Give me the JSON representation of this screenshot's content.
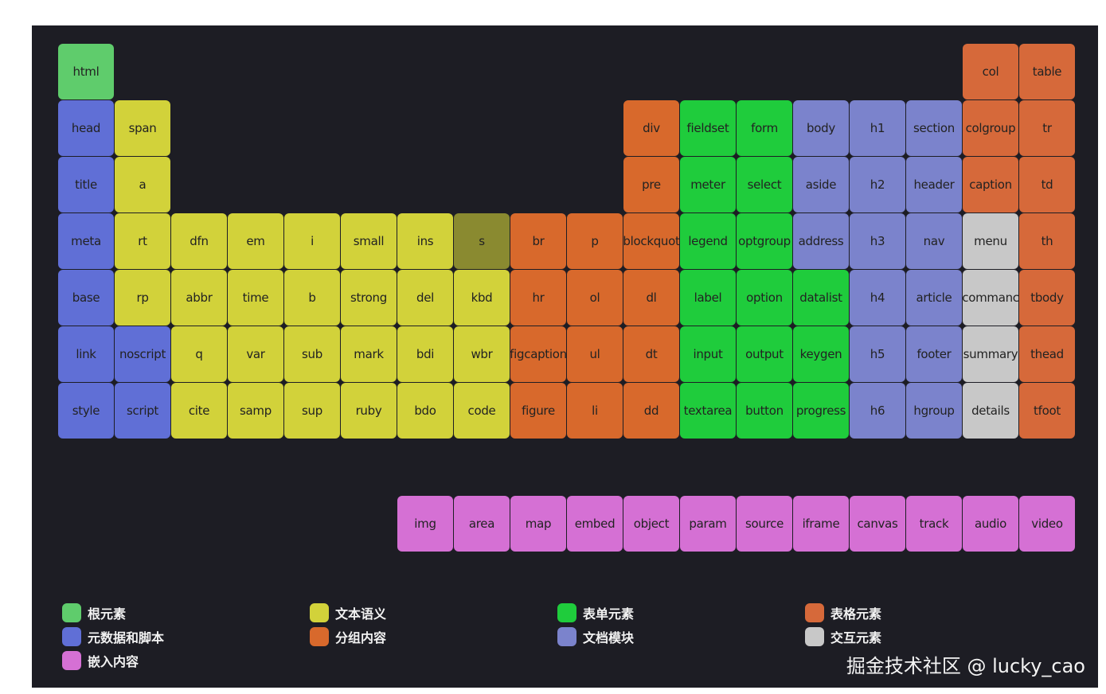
{
  "categories": {
    "root": {
      "label": "根元素",
      "color": "#5fcc6c"
    },
    "text": {
      "label": "文本语义",
      "color": "#d2d23a"
    },
    "form": {
      "label": "表单元素",
      "color": "#1fcc3c"
    },
    "table": {
      "label": "表格元素",
      "color": "#d6693a"
    },
    "meta": {
      "label": "元数据和脚本",
      "color": "#606fd6"
    },
    "group": {
      "label": "分组内容",
      "color": "#d8692c"
    },
    "section": {
      "label": "文档模块",
      "color": "#7b83cc"
    },
    "interactive": {
      "label": "交互元素",
      "color": "#c8c8c8"
    },
    "embedded": {
      "label": "嵌入内容",
      "color": "#d570d4"
    }
  },
  "dimmed_color": "#8a8a30",
  "grid": [
    [
      [
        "html",
        "root"
      ],
      null,
      null,
      null,
      null,
      null,
      null,
      null,
      null,
      null,
      null,
      null,
      null,
      null,
      null,
      null,
      [
        "col",
        "table"
      ],
      [
        "table",
        "table"
      ]
    ],
    [
      [
        "head",
        "meta"
      ],
      [
        "span",
        "text"
      ],
      null,
      null,
      null,
      null,
      null,
      null,
      null,
      null,
      [
        "div",
        "group"
      ],
      [
        "fieldset",
        "form"
      ],
      [
        "form",
        "form"
      ],
      [
        "body",
        "section"
      ],
      [
        "h1",
        "section"
      ],
      [
        "section",
        "section"
      ],
      [
        "colgroup",
        "table"
      ],
      [
        "tr",
        "table"
      ]
    ],
    [
      [
        "title",
        "meta"
      ],
      [
        "a",
        "text"
      ],
      null,
      null,
      null,
      null,
      null,
      null,
      null,
      null,
      [
        "pre",
        "group"
      ],
      [
        "meter",
        "form"
      ],
      [
        "select",
        "form"
      ],
      [
        "aside",
        "section"
      ],
      [
        "h2",
        "section"
      ],
      [
        "header",
        "section"
      ],
      [
        "caption",
        "table"
      ],
      [
        "td",
        "table"
      ]
    ],
    [
      [
        "meta",
        "meta"
      ],
      [
        "rt",
        "text"
      ],
      [
        "dfn",
        "text"
      ],
      [
        "em",
        "text"
      ],
      [
        "i",
        "text"
      ],
      [
        "small",
        "text"
      ],
      [
        "ins",
        "text"
      ],
      [
        "s",
        "text",
        "dimmed"
      ],
      [
        "br",
        "group"
      ],
      [
        "p",
        "group"
      ],
      [
        "blockquot",
        "group"
      ],
      [
        "legend",
        "form"
      ],
      [
        "optgroup",
        "form"
      ],
      [
        "address",
        "section"
      ],
      [
        "h3",
        "section"
      ],
      [
        "nav",
        "section"
      ],
      [
        "menu",
        "interactive"
      ],
      [
        "th",
        "table"
      ]
    ],
    [
      [
        "base",
        "meta"
      ],
      [
        "rp",
        "text"
      ],
      [
        "abbr",
        "text"
      ],
      [
        "time",
        "text"
      ],
      [
        "b",
        "text"
      ],
      [
        "strong",
        "text"
      ],
      [
        "del",
        "text"
      ],
      [
        "kbd",
        "text"
      ],
      [
        "hr",
        "group"
      ],
      [
        "ol",
        "group"
      ],
      [
        "dl",
        "group"
      ],
      [
        "label",
        "form"
      ],
      [
        "option",
        "form"
      ],
      [
        "datalist",
        "form"
      ],
      [
        "h4",
        "section"
      ],
      [
        "article",
        "section"
      ],
      [
        "commanc",
        "interactive"
      ],
      [
        "tbody",
        "table"
      ]
    ],
    [
      [
        "link",
        "meta"
      ],
      [
        "noscript",
        "meta"
      ],
      [
        "q",
        "text"
      ],
      [
        "var",
        "text"
      ],
      [
        "sub",
        "text"
      ],
      [
        "mark",
        "text"
      ],
      [
        "bdi",
        "text"
      ],
      [
        "wbr",
        "text"
      ],
      [
        "figcaption",
        "group"
      ],
      [
        "ul",
        "group"
      ],
      [
        "dt",
        "group"
      ],
      [
        "input",
        "form"
      ],
      [
        "output",
        "form"
      ],
      [
        "keygen",
        "form"
      ],
      [
        "h5",
        "section"
      ],
      [
        "footer",
        "section"
      ],
      [
        "summary",
        "interactive"
      ],
      [
        "thead",
        "table"
      ]
    ],
    [
      [
        "style",
        "meta"
      ],
      [
        "script",
        "meta"
      ],
      [
        "cite",
        "text"
      ],
      [
        "samp",
        "text"
      ],
      [
        "sup",
        "text"
      ],
      [
        "ruby",
        "text"
      ],
      [
        "bdo",
        "text"
      ],
      [
        "code",
        "text"
      ],
      [
        "figure",
        "group"
      ],
      [
        "li",
        "group"
      ],
      [
        "dd",
        "group"
      ],
      [
        "textarea",
        "form"
      ],
      [
        "button",
        "form"
      ],
      [
        "progress",
        "form"
      ],
      [
        "h6",
        "section"
      ],
      [
        "hgroup",
        "section"
      ],
      [
        "details",
        "interactive"
      ],
      [
        "tfoot",
        "table"
      ]
    ],
    [],
    [
      null,
      null,
      null,
      null,
      null,
      null,
      [
        "img",
        "embedded"
      ],
      [
        "area",
        "embedded"
      ],
      [
        "map",
        "embedded"
      ],
      [
        "embed",
        "embedded"
      ],
      [
        "object",
        "embedded"
      ],
      [
        "param",
        "embedded"
      ],
      [
        "source",
        "embedded"
      ],
      [
        "iframe",
        "embedded"
      ],
      [
        "canvas",
        "embedded"
      ],
      [
        "track",
        "embedded"
      ],
      [
        "audio",
        "embedded"
      ],
      [
        "video",
        "embedded"
      ]
    ]
  ],
  "legend": [
    [
      "root",
      "meta",
      "embedded"
    ],
    [
      "text",
      "group"
    ],
    [
      "form",
      "section"
    ],
    [
      "table",
      "interactive"
    ]
  ],
  "credit": "掘金技术社区 @ lucky_cao"
}
